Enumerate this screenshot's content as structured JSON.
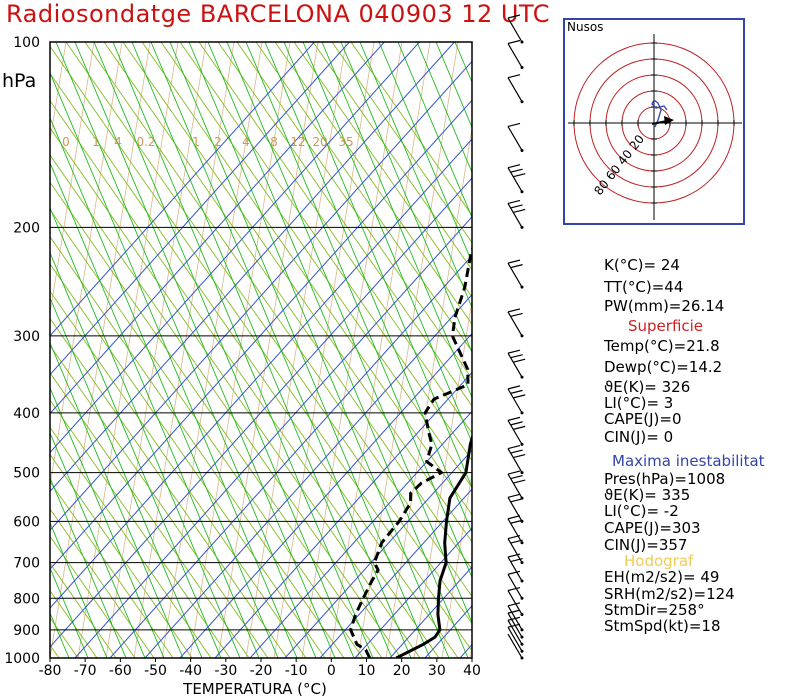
{
  "title": "Radiosondatge BARCELONA 040903 12 UTC",
  "pressure_unit": "hPa",
  "xaxis_label": "TEMPERATURA (°C)",
  "colors": {
    "title": "#cc1111",
    "isotherm": "#3355cc",
    "dry_adiabat": "#88bb22",
    "moist_adiabat": "#22bb22",
    "mixing_ratio": "#cc9955",
    "hodograph_ring": "#bb2222",
    "box": "#3344aa",
    "section_superficie": "#cc2222",
    "section_maxima": "#3344aa",
    "section_hodograf": "#eecc55"
  },
  "chart_data": {
    "type": "line",
    "chart": "skew-t log-p sounding",
    "x_ticks": [
      -80,
      -70,
      -60,
      -50,
      -40,
      -30,
      -20,
      -10,
      0,
      10,
      20,
      30,
      40
    ],
    "x_range": [
      -80,
      40
    ],
    "p_ticks": [
      100,
      200,
      300,
      400,
      500,
      600,
      700,
      800,
      900,
      1000
    ],
    "p_range": [
      100,
      1000
    ],
    "mixing_ratio_labels": [
      "0",
      "1",
      "4",
      "0.2",
      "1",
      "2",
      "4",
      "8",
      "12",
      "20",
      "35"
    ],
    "series": [
      {
        "style": "solid",
        "points": [
          [
            1000,
            21.8
          ],
          [
            950,
            26
          ],
          [
            925,
            27.5
          ],
          [
            900,
            27
          ],
          [
            850,
            22.5
          ],
          [
            800,
            18.5
          ],
          [
            750,
            14.5
          ],
          [
            700,
            11.5
          ],
          [
            650,
            6
          ],
          [
            600,
            1
          ],
          [
            550,
            -4
          ],
          [
            500,
            -6
          ],
          [
            450,
            -12
          ],
          [
            400,
            -17.5
          ],
          [
            350,
            -27
          ],
          [
            300,
            -37
          ],
          [
            250,
            -47
          ],
          [
            200,
            -57
          ],
          [
            190,
            -58
          ],
          [
            170,
            -58.5
          ],
          [
            150,
            -56
          ],
          [
            140,
            -57.5
          ],
          [
            130,
            -58
          ],
          [
            110,
            -59
          ],
          [
            100,
            -60
          ]
        ]
      },
      {
        "style": "dashed",
        "points": [
          [
            1000,
            14.2
          ],
          [
            970,
            11
          ],
          [
            950,
            7
          ],
          [
            900,
            1.5
          ],
          [
            850,
            -1
          ],
          [
            800,
            -3
          ],
          [
            750,
            -5
          ],
          [
            720,
            -6
          ],
          [
            700,
            -9
          ],
          [
            650,
            -12
          ],
          [
            600,
            -12.5
          ],
          [
            560,
            -14
          ],
          [
            540,
            -16.5
          ],
          [
            520,
            -16
          ],
          [
            500,
            -13
          ],
          [
            480,
            -20
          ],
          [
            450,
            -23
          ],
          [
            430,
            -27
          ],
          [
            400,
            -33
          ],
          [
            380,
            -34
          ],
          [
            360,
            -28
          ],
          [
            340,
            -32
          ],
          [
            300,
            -45
          ],
          [
            280,
            -49
          ],
          [
            250,
            -54
          ],
          [
            220,
            -61
          ],
          [
            200,
            -65
          ],
          [
            180,
            -67
          ],
          [
            160,
            -72
          ],
          [
            150,
            -72.5
          ],
          [
            140,
            -76
          ],
          [
            130,
            -77
          ],
          [
            125,
            -74
          ],
          [
            120,
            -77
          ],
          [
            115,
            -78
          ],
          [
            110,
            -78.5
          ],
          [
            105,
            -80
          ],
          [
            100,
            -81
          ]
        ]
      }
    ],
    "wind_barbs": [
      {
        "p": 1000,
        "level": 0
      },
      {
        "p": 975,
        "level": 1
      },
      {
        "p": 950,
        "level": 1
      },
      {
        "p": 925,
        "level": 1
      },
      {
        "p": 900,
        "level": 1
      },
      {
        "p": 850,
        "level": 1
      },
      {
        "p": 800,
        "level": 1
      },
      {
        "p": 750,
        "level": 2
      },
      {
        "p": 700,
        "level": 2
      },
      {
        "p": 650,
        "level": 2
      },
      {
        "p": 600,
        "level": 2
      },
      {
        "p": 550,
        "level": 3
      },
      {
        "p": 500,
        "level": 3
      },
      {
        "p": 450,
        "level": 3
      },
      {
        "p": 400,
        "level": 3
      },
      {
        "p": 350,
        "level": 3
      },
      {
        "p": 300,
        "level": 2
      },
      {
        "p": 250,
        "level": 2
      },
      {
        "p": 200,
        "level": 3
      },
      {
        "p": 175,
        "level": 3
      },
      {
        "p": 150,
        "level": 1
      },
      {
        "p": 125,
        "level": 1
      },
      {
        "p": 110,
        "level": 1
      },
      {
        "p": 100,
        "level": 1
      }
    ]
  },
  "hodograph": {
    "title": "Nusos",
    "ring_labels": [
      "80",
      "60",
      "40",
      "20"
    ]
  },
  "indices": {
    "k": "K(°C)= 24",
    "tt": "TT(°C)=44",
    "pw": "PW(mm)=26.14"
  },
  "superficie": {
    "heading": "Superficie",
    "temp": "Temp(°C)=21.8",
    "dewp": "Dewp(°C)=14.2",
    "theta": "ϑE(K)= 326",
    "li": "LI(°C)= 3",
    "cape": "CAPE(J)=0",
    "cin": "CIN(J)= 0"
  },
  "maxima": {
    "heading": "Maxima inestabilitat",
    "pres": "Pres(hPa)=1008",
    "theta": "ϑE(K)= 335",
    "li": "LI(°C)= -2",
    "cape": "CAPE(J)=303",
    "cin": "CIN(J)=357"
  },
  "hodograf": {
    "heading": "Hodograf",
    "eh": "EH(m2/s2)= 49",
    "srh": "SRH(m2/s2)=124",
    "stmdir": "StmDir=258°",
    "stmspd": "StmSpd(kt)=18"
  }
}
